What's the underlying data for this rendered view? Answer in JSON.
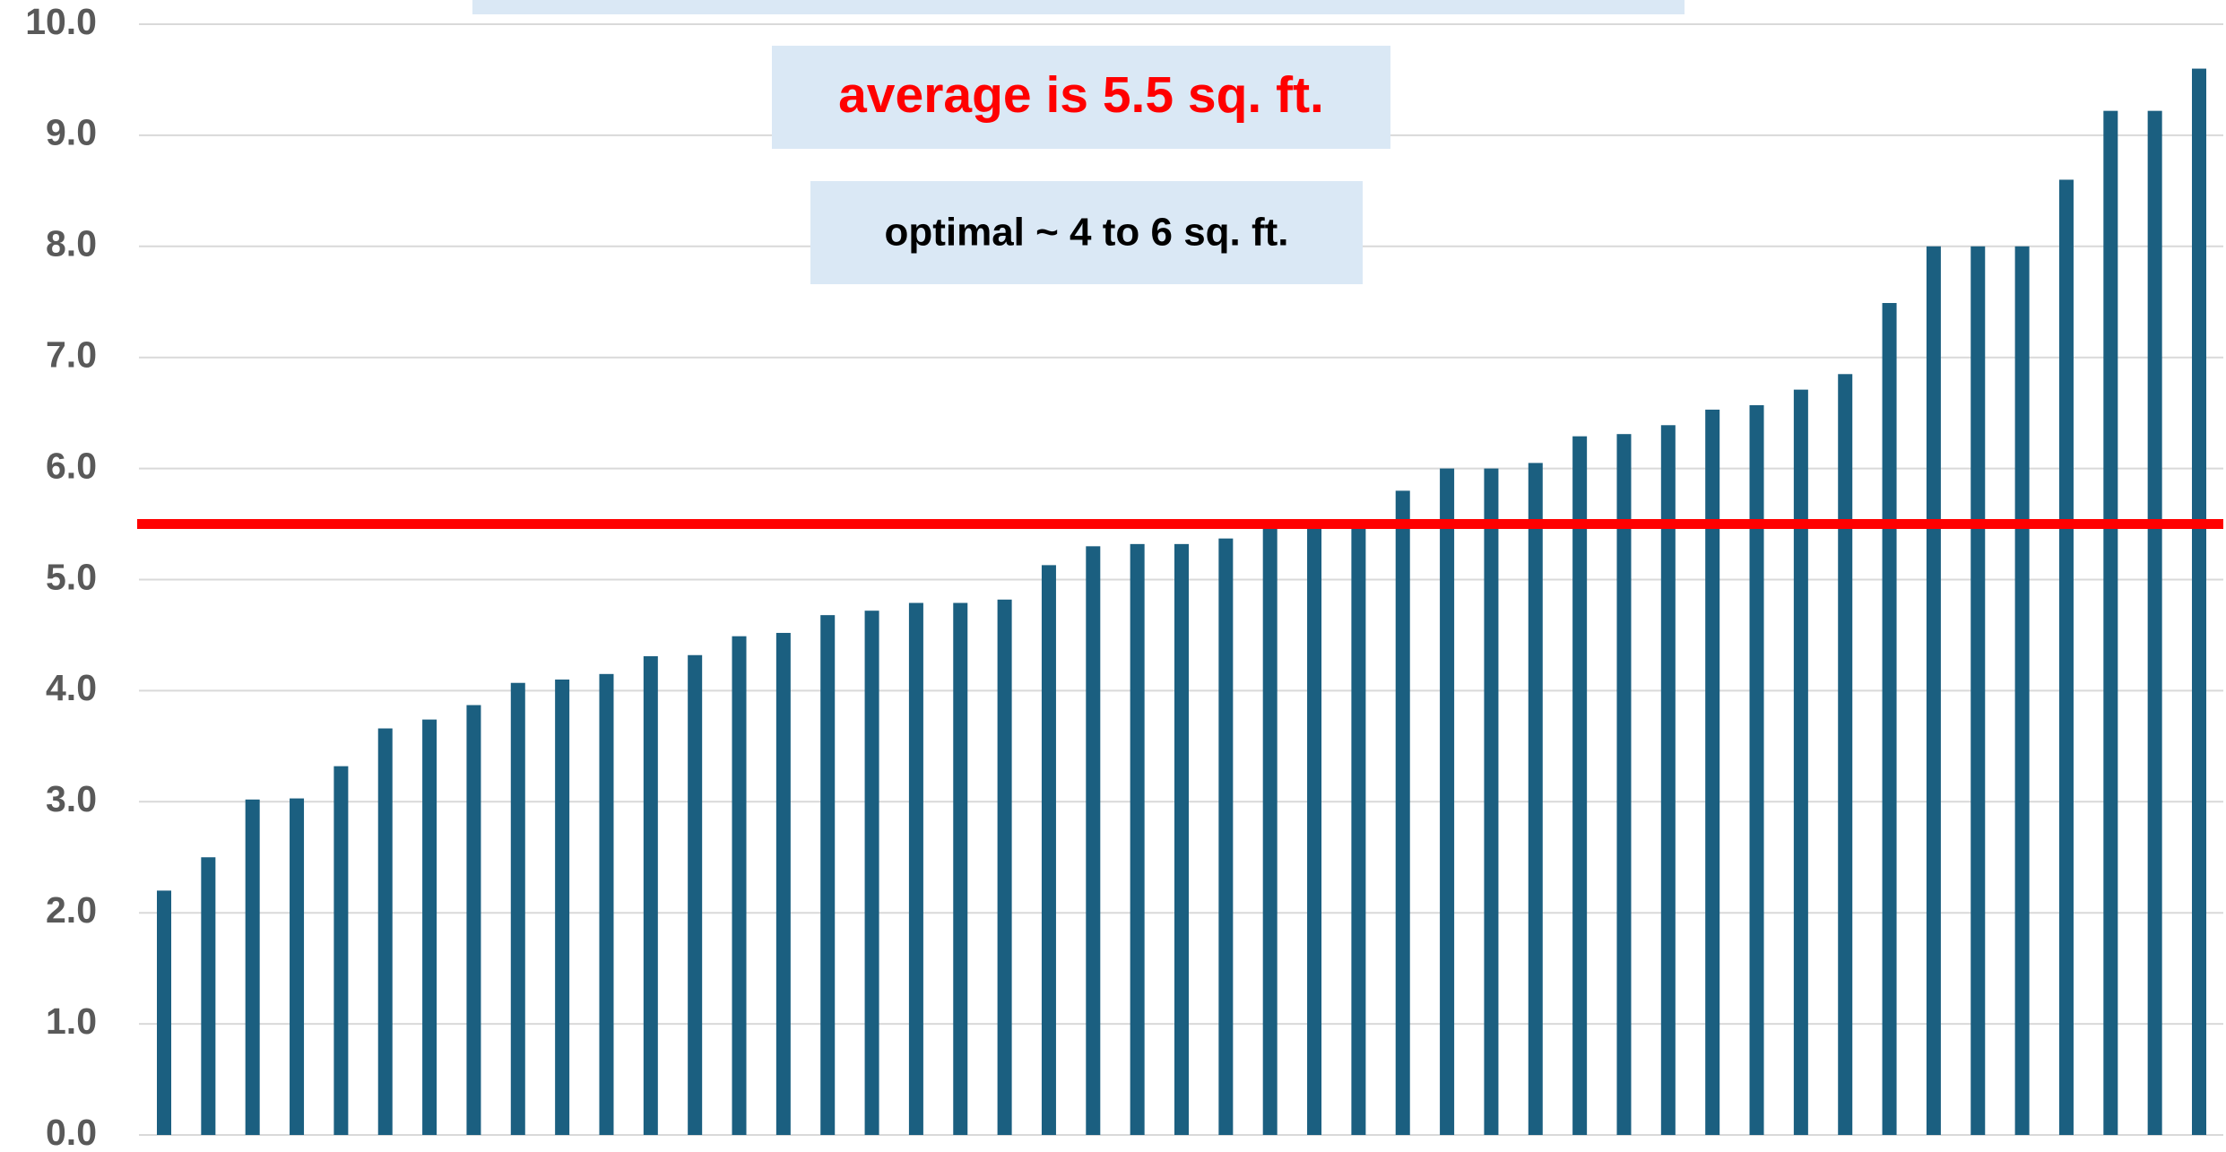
{
  "chart_data": {
    "type": "bar",
    "values": [
      2.2,
      2.5,
      3.02,
      3.03,
      3.32,
      3.66,
      3.74,
      3.87,
      4.07,
      4.1,
      4.15,
      4.31,
      4.32,
      4.49,
      4.52,
      4.68,
      4.72,
      4.79,
      4.79,
      4.82,
      5.13,
      5.3,
      5.32,
      5.32,
      5.37,
      5.5,
      5.5,
      5.5,
      5.8,
      6.0,
      6.0,
      6.05,
      6.29,
      6.31,
      6.39,
      6.53,
      6.57,
      6.71,
      6.85,
      7.49,
      8.0,
      8.0,
      8.0,
      8.6,
      9.22,
      9.22,
      9.6
    ],
    "color": "#1b5f80",
    "ylim": [
      0,
      10
    ],
    "yticks": [
      {
        "value": 0,
        "label": "0.0"
      },
      {
        "value": 1,
        "label": "1.0"
      },
      {
        "value": 2,
        "label": "2.0"
      },
      {
        "value": 3,
        "label": "3.0"
      },
      {
        "value": 4,
        "label": "4.0"
      },
      {
        "value": 5,
        "label": "5.0"
      },
      {
        "value": 6,
        "label": "6.0"
      },
      {
        "value": 7,
        "label": "7.0"
      },
      {
        "value": 8,
        "label": "8.0"
      },
      {
        "value": 9,
        "label": "9.0"
      },
      {
        "value": 10,
        "label": "10.0"
      }
    ],
    "grid": true,
    "reference_line": {
      "value": 5.5,
      "color": "#ff0000"
    },
    "annotations": [
      {
        "text": "average is 5.5 sq. ft.",
        "color": "#ff0000"
      },
      {
        "text": "optimal ~ 4 to 6 sq. ft.",
        "color": "#000000"
      }
    ]
  }
}
